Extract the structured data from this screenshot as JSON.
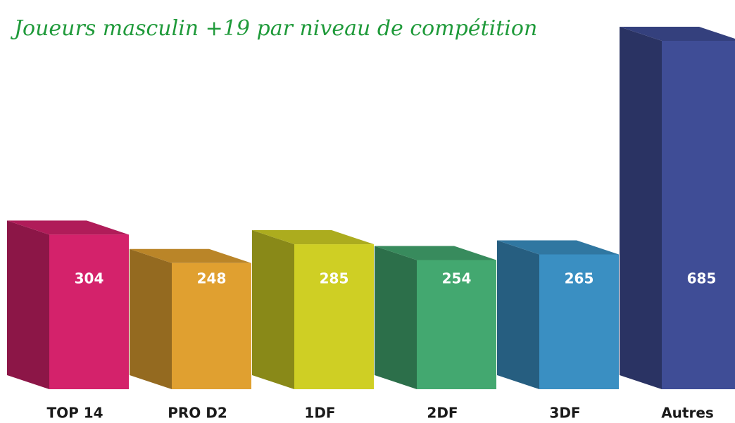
{
  "chart_data": {
    "type": "bar3d",
    "title": "Joueurs masculin +19 par niveau de compétition",
    "categories": [
      "TOP 14",
      "PRO D2",
      "1DF",
      "2DF",
      "3DF",
      "Autres"
    ],
    "values": [
      304,
      248,
      285,
      254,
      265,
      685
    ],
    "colors": [
      "#d4226b",
      "#e0a030",
      "#cfcf24",
      "#43a870",
      "#3a8fc2",
      "#3f4d96"
    ]
  }
}
